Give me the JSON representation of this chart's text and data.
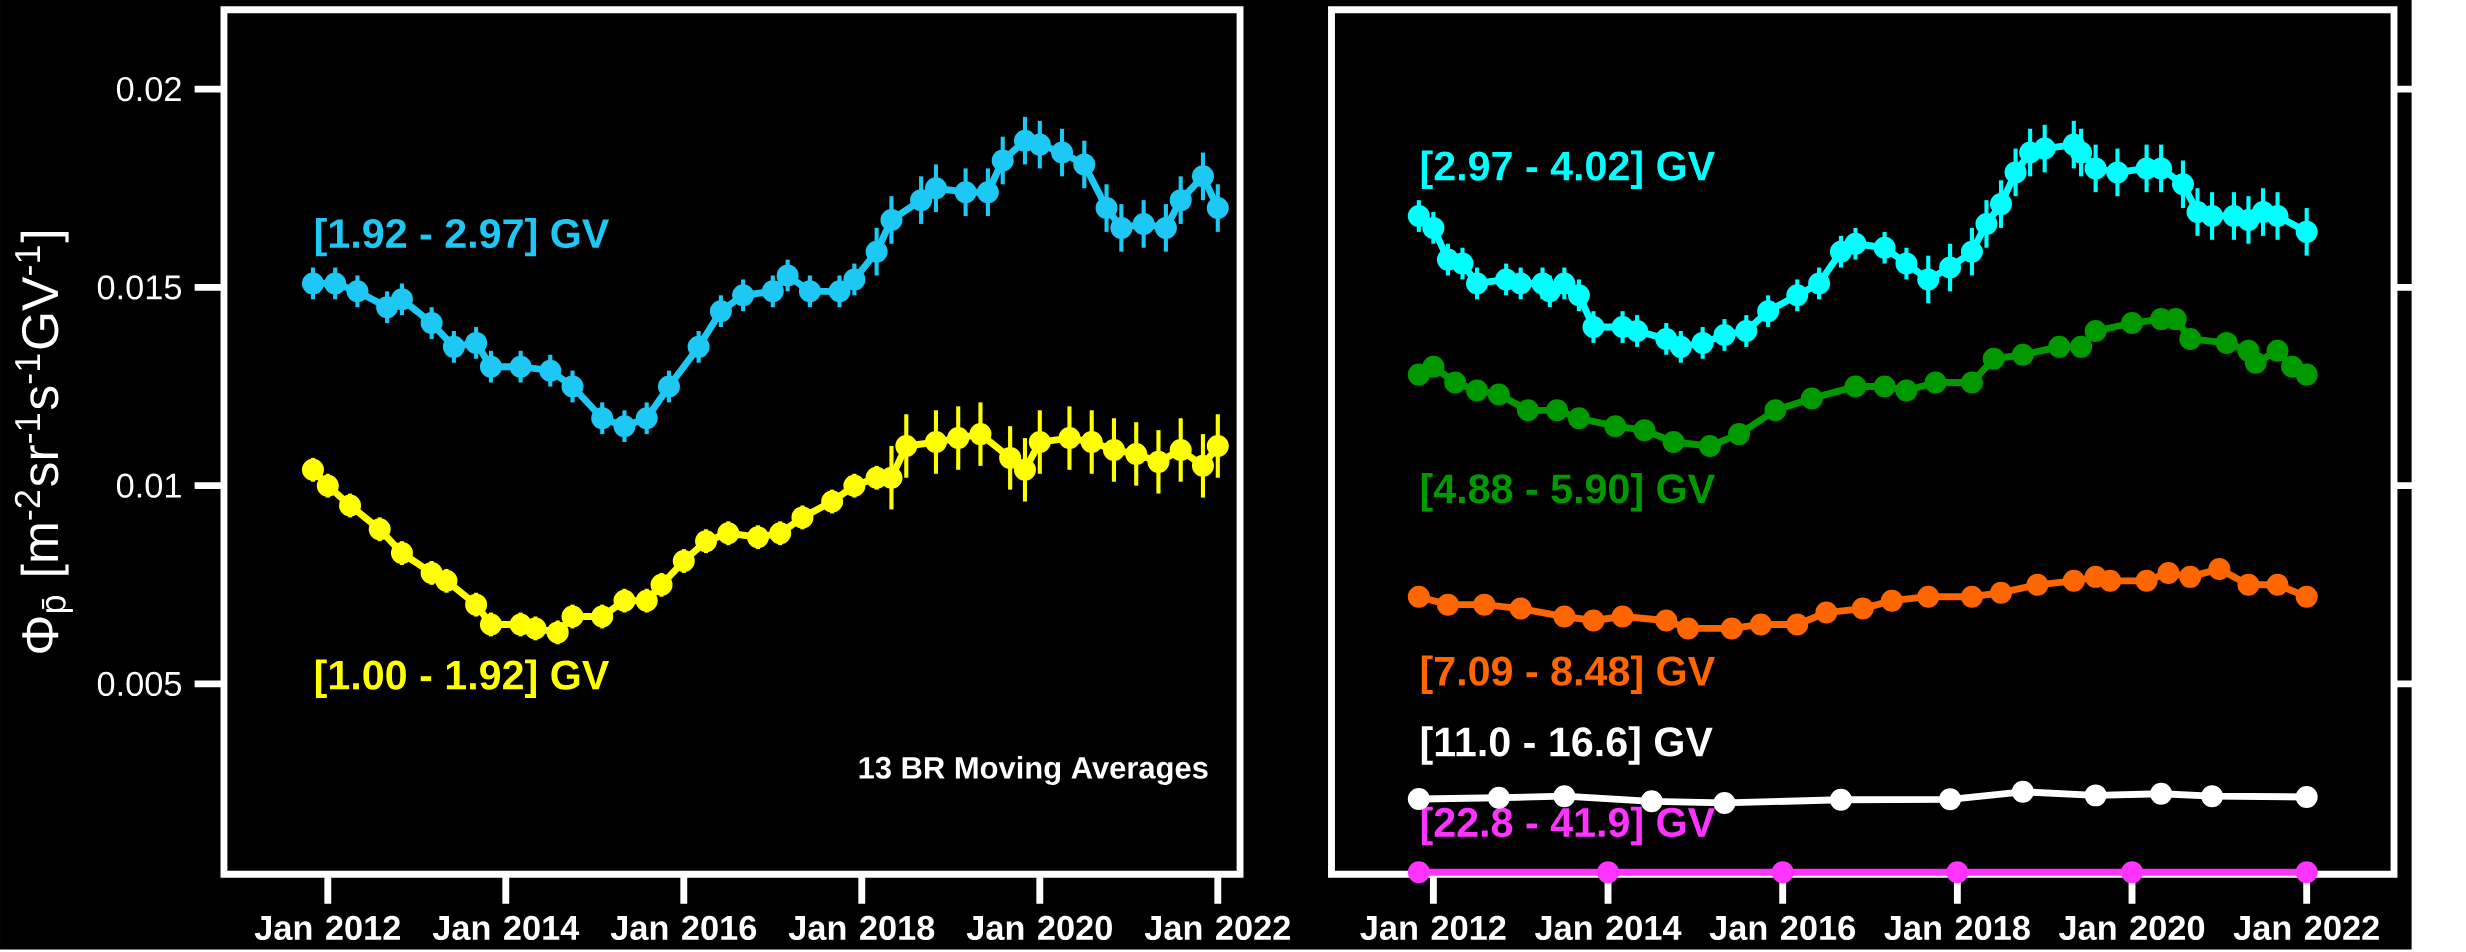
{
  "chart_data": [
    {
      "type": "line",
      "ylabel": "Φ$_{p̄}$ [m$^{-2}$sr$^{-1}$s$^{-1}$GV$^{-1}$]",
      "xlim": [
        "2010-11",
        "2022-04"
      ],
      "ylim": [
        0.0002,
        0.022
      ],
      "xticks": [
        {
          "value": "2012-01",
          "label": "Jan 2012"
        },
        {
          "value": "2014-01",
          "label": "Jan 2014"
        },
        {
          "value": "2016-01",
          "label": "Jan 2016"
        },
        {
          "value": "2018-01",
          "label": "Jan 2018"
        },
        {
          "value": "2020-01",
          "label": "Jan 2020"
        },
        {
          "value": "2022-01",
          "label": "Jan 2022"
        }
      ],
      "yticks": [
        0.005,
        0.01,
        0.015,
        0.02
      ],
      "marker": "circle",
      "line_style": "solid",
      "annotations": [
        "13 BR Moving Averages"
      ],
      "series": [
        {
          "name": "[1.92 - 2.97] GV",
          "color": "#1ec8f5",
          "x": [
            "2011-11",
            "2012-02",
            "2012-05",
            "2012-09",
            "2012-11",
            "2013-03",
            "2013-06",
            "2013-09",
            "2013-11",
            "2014-03",
            "2014-07",
            "2014-10",
            "2015-02",
            "2015-05",
            "2015-08",
            "2015-11",
            "2016-03",
            "2016-06",
            "2016-09",
            "2017-01",
            "2017-03",
            "2017-06",
            "2017-10",
            "2017-12",
            "2018-03",
            "2018-05",
            "2018-09",
            "2018-11",
            "2019-03",
            "2019-06",
            "2019-08",
            "2019-11",
            "2020-01",
            "2020-04",
            "2020-07",
            "2020-10",
            "2020-12",
            "2021-03",
            "2021-06",
            "2021-08",
            "2021-11",
            "2022-01"
          ],
          "values": [
            0.0151,
            0.0151,
            0.0149,
            0.0145,
            0.0147,
            0.0141,
            0.0135,
            0.0136,
            0.013,
            0.013,
            0.0129,
            0.0125,
            0.0117,
            0.0115,
            0.0117,
            0.0125,
            0.0135,
            0.0144,
            0.0148,
            0.0149,
            0.0153,
            0.0149,
            0.0149,
            0.0152,
            0.0159,
            0.0167,
            0.0172,
            0.0175,
            0.0174,
            0.0174,
            0.0182,
            0.0187,
            0.0186,
            0.0184,
            0.0181,
            0.017,
            0.0165,
            0.0166,
            0.0165,
            0.0172,
            0.0178,
            0.017
          ],
          "errors": [
            0.0004,
            0.0004,
            0.0004,
            0.0004,
            0.0004,
            0.0004,
            0.0004,
            0.0004,
            0.0004,
            0.0004,
            0.0004,
            0.0004,
            0.0004,
            0.0004,
            0.0004,
            0.0004,
            0.0004,
            0.0004,
            0.0004,
            0.0004,
            0.0004,
            0.0004,
            0.0004,
            0.0004,
            0.0006,
            0.0006,
            0.0006,
            0.0006,
            0.0006,
            0.0006,
            0.0006,
            0.0006,
            0.0006,
            0.0006,
            0.0006,
            0.0006,
            0.0006,
            0.0006,
            0.0006,
            0.0006,
            0.0006,
            0.0006
          ]
        },
        {
          "name": "[1.00 - 1.92] GV",
          "color": "#ffff00",
          "x": [
            "2011-11",
            "2012-01",
            "2012-04",
            "2012-08",
            "2012-11",
            "2013-03",
            "2013-05",
            "2013-09",
            "2013-11",
            "2014-03",
            "2014-05",
            "2014-08",
            "2014-10",
            "2015-02",
            "2015-05",
            "2015-08",
            "2015-10",
            "2016-01",
            "2016-04",
            "2016-07",
            "2016-11",
            "2017-02",
            "2017-05",
            "2017-09",
            "2017-12",
            "2018-03",
            "2018-05",
            "2018-07",
            "2018-11",
            "2019-02",
            "2019-05",
            "2019-09",
            "2019-11",
            "2020-01",
            "2020-05",
            "2020-08",
            "2020-11",
            "2021-02",
            "2021-05",
            "2021-08",
            "2021-11",
            "2022-01"
          ],
          "values": [
            0.0104,
            0.01,
            0.0095,
            0.0089,
            0.0083,
            0.0078,
            0.0076,
            0.007,
            0.0065,
            0.0065,
            0.0064,
            0.0063,
            0.0067,
            0.0067,
            0.0071,
            0.0071,
            0.0075,
            0.0081,
            0.0086,
            0.0088,
            0.0087,
            0.0088,
            0.0092,
            0.0096,
            0.01,
            0.0102,
            0.0102,
            0.011,
            0.0111,
            0.0112,
            0.0113,
            0.0107,
            0.0104,
            0.0111,
            0.0112,
            0.0111,
            0.0109,
            0.0108,
            0.0106,
            0.0109,
            0.0105,
            0.011
          ],
          "errors": [
            0.0003,
            0.0003,
            0.0003,
            0.0003,
            0.0003,
            0.0003,
            0.0003,
            0.0003,
            0.0003,
            0.0003,
            0.0003,
            0.0003,
            0.0003,
            0.0003,
            0.0003,
            0.0003,
            0.0003,
            0.0003,
            0.0003,
            0.0003,
            0.0003,
            0.0003,
            0.0003,
            0.0003,
            0.0003,
            0.0003,
            0.0008,
            0.0008,
            0.0008,
            0.0008,
            0.0008,
            0.0008,
            0.0008,
            0.0008,
            0.0008,
            0.0008,
            0.0008,
            0.0008,
            0.0008,
            0.0008,
            0.0008,
            0.0008
          ]
        }
      ]
    },
    {
      "type": "line",
      "xlim": [
        "2010-11",
        "2023-01"
      ],
      "ylim": [
        0.0002,
        0.022
      ],
      "xticks": [
        {
          "value": "2012-01",
          "label": "Jan 2012"
        },
        {
          "value": "2014-01",
          "label": "Jan 2014"
        },
        {
          "value": "2016-01",
          "label": "Jan 2016"
        },
        {
          "value": "2018-01",
          "label": "Jan 2018"
        },
        {
          "value": "2020-01",
          "label": "Jan 2020"
        },
        {
          "value": "2022-01",
          "label": "Jan 2022"
        }
      ],
      "yticks": [
        0.005,
        0.01,
        0.015,
        0.02
      ],
      "tick_labels": "x",
      "marker": "circle",
      "line_style": "solid",
      "series": [
        {
          "name": "[2.97 - 4.02] GV",
          "color": "#00ffff",
          "x": [
            "2011-11",
            "2012-01",
            "2012-03",
            "2012-05",
            "2012-07",
            "2012-11",
            "2013-01",
            "2013-04",
            "2013-05",
            "2013-07",
            "2013-09",
            "2013-11",
            "2014-03",
            "2014-05",
            "2014-09",
            "2014-11",
            "2015-02",
            "2015-05",
            "2015-08",
            "2015-11",
            "2016-03",
            "2016-06",
            "2016-09",
            "2016-11",
            "2017-03",
            "2017-06",
            "2017-09",
            "2017-12",
            "2018-03",
            "2018-05",
            "2018-07",
            "2018-09",
            "2018-11",
            "2019-01",
            "2019-05",
            "2019-06",
            "2019-08",
            "2019-11",
            "2020-03",
            "2020-05",
            "2020-08",
            "2020-10",
            "2020-12",
            "2021-03",
            "2021-05",
            "2021-07",
            "2021-09",
            "2022-01"
          ],
          "values": [
            0.0168,
            0.0165,
            0.0157,
            0.0156,
            0.0151,
            0.0152,
            0.0151,
            0.0151,
            0.0149,
            0.0151,
            0.0148,
            0.014,
            0.014,
            0.0139,
            0.0137,
            0.0135,
            0.0136,
            0.0138,
            0.0139,
            0.0144,
            0.0148,
            0.0151,
            0.0159,
            0.0161,
            0.016,
            0.0156,
            0.0152,
            0.0155,
            0.0159,
            0.0166,
            0.0171,
            0.0179,
            0.0184,
            0.0185,
            0.0186,
            0.0184,
            0.018,
            0.0179,
            0.018,
            0.018,
            0.0176,
            0.0169,
            0.0168,
            0.0168,
            0.0167,
            0.0169,
            0.0168,
            0.0164
          ],
          "errors": [
            0.0004,
            0.0004,
            0.0004,
            0.0004,
            0.0004,
            0.0004,
            0.0004,
            0.0004,
            0.0004,
            0.0004,
            0.0004,
            0.0004,
            0.0004,
            0.0004,
            0.0004,
            0.0004,
            0.0004,
            0.0004,
            0.0004,
            0.0004,
            0.0004,
            0.0004,
            0.0004,
            0.0004,
            0.0004,
            0.0004,
            0.0006,
            0.0006,
            0.0006,
            0.0006,
            0.0006,
            0.0006,
            0.0006,
            0.0006,
            0.0006,
            0.0006,
            0.0006,
            0.0006,
            0.0006,
            0.0006,
            0.0006,
            0.0006,
            0.0006,
            0.0006,
            0.0006,
            0.0006,
            0.0006,
            0.0006
          ]
        },
        {
          "name": "[4.88 - 5.90] GV",
          "color": "#009900",
          "x": [
            "2011-11",
            "2012-01",
            "2012-04",
            "2012-07",
            "2012-10",
            "2013-02",
            "2013-06",
            "2013-09",
            "2014-02",
            "2014-06",
            "2014-10",
            "2015-03",
            "2015-07",
            "2015-12",
            "2016-05",
            "2016-11",
            "2017-03",
            "2017-06",
            "2017-10",
            "2018-03",
            "2018-06",
            "2018-10",
            "2019-03",
            "2019-06",
            "2019-08",
            "2020-01",
            "2020-05",
            "2020-07",
            "2020-09",
            "2021-02",
            "2021-05",
            "2021-06",
            "2021-09",
            "2021-11",
            "2022-01"
          ],
          "values": [
            0.0128,
            0.013,
            0.0126,
            0.0124,
            0.0123,
            0.0119,
            0.0119,
            0.0117,
            0.0115,
            0.0114,
            0.0111,
            0.011,
            0.0113,
            0.0119,
            0.0122,
            0.0125,
            0.0125,
            0.0124,
            0.0126,
            0.0126,
            0.0132,
            0.0133,
            0.0135,
            0.0135,
            0.0139,
            0.0141,
            0.0142,
            0.0142,
            0.0137,
            0.0136,
            0.0134,
            0.0131,
            0.0134,
            0.013,
            0.0128
          ]
        },
        {
          "name": "[7.09 - 8.48] GV",
          "color": "#ff6600",
          "x": [
            "2011-11",
            "2012-03",
            "2012-08",
            "2013-01",
            "2013-07",
            "2013-11",
            "2014-03",
            "2014-09",
            "2014-12",
            "2015-06",
            "2015-10",
            "2016-03",
            "2016-07",
            "2016-12",
            "2017-04",
            "2017-09",
            "2018-03",
            "2018-07",
            "2018-12",
            "2019-05",
            "2019-08",
            "2019-10",
            "2020-03",
            "2020-06",
            "2020-09",
            "2021-01",
            "2021-05",
            "2021-09",
            "2022-01"
          ],
          "values": [
            0.0072,
            0.007,
            0.007,
            0.0069,
            0.0067,
            0.0066,
            0.0067,
            0.0066,
            0.0064,
            0.0064,
            0.0065,
            0.0065,
            0.0068,
            0.0069,
            0.0071,
            0.0072,
            0.0072,
            0.0073,
            0.0075,
            0.0076,
            0.0077,
            0.0076,
            0.0076,
            0.0078,
            0.0077,
            0.0079,
            0.0075,
            0.0075,
            0.0072
          ]
        },
        {
          "name": "[11.0 - 16.6] GV",
          "color": "#ffffff",
          "x": [
            "2011-11",
            "2012-10",
            "2013-07",
            "2014-07",
            "2015-05",
            "2016-09",
            "2017-12",
            "2018-10",
            "2019-08",
            "2020-05",
            "2020-12",
            "2022-01"
          ],
          "values": [
            0.0021,
            0.00213,
            0.00217,
            0.00204,
            0.002,
            0.00208,
            0.00209,
            0.00228,
            0.00219,
            0.00223,
            0.00217,
            0.00215
          ]
        },
        {
          "name": "[22.8 - 41.9] GV",
          "color": "#ff33ff",
          "x": [
            "2011-11",
            "2014-01",
            "2016-01",
            "2018-01",
            "2020-01",
            "2022-01"
          ],
          "values": [
            0.00025,
            0.00025,
            0.00025,
            0.00025,
            0.00025,
            0.00025
          ]
        }
      ]
    }
  ]
}
